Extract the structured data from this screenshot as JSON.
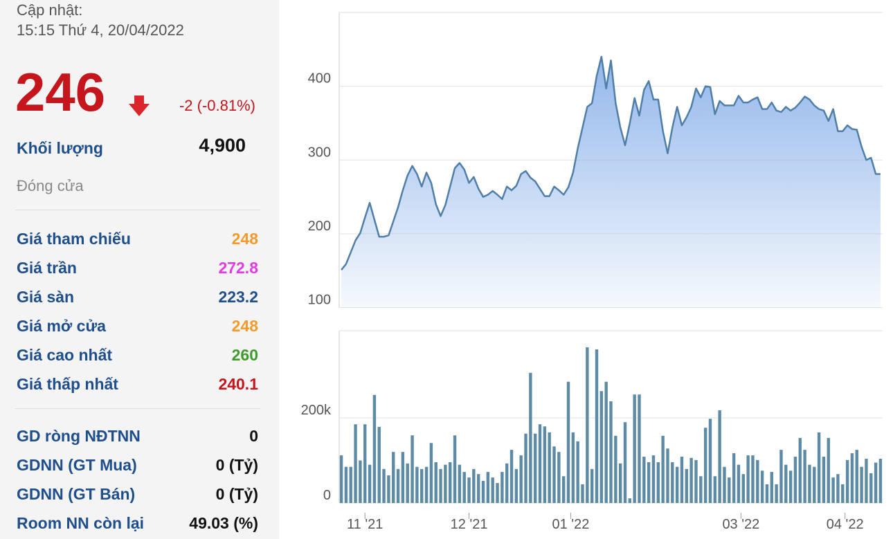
{
  "header": {
    "update_label": "Cập nhật:",
    "update_time": "15:15 Thứ 4, 20/04/2022"
  },
  "quote": {
    "price": "246",
    "change": "-2 (-0.81%)",
    "color": "#c4161c",
    "volume_label": "Khối lượng",
    "volume": "4,900",
    "status": "Đóng cửa"
  },
  "stats": [
    {
      "label": "Giá tham chiếu",
      "value": "248",
      "color": "#f39a2b"
    },
    {
      "label": "Giá trần",
      "value": "272.8",
      "color": "#e23be3"
    },
    {
      "label": "Giá sàn",
      "value": "223.2",
      "color": "#1f4e8c"
    },
    {
      "label": "Giá mở cửa",
      "value": "248",
      "color": "#f39a2b"
    },
    {
      "label": "Giá cao nhất",
      "value": "260",
      "color": "#3f9b2c"
    },
    {
      "label": "Giá thấp nhất",
      "value": "240.1",
      "color": "#c4161c"
    }
  ],
  "foreign": [
    {
      "label": "GD ròng NĐTNN",
      "value": "0"
    },
    {
      "label": "GDNN (GT Mua)",
      "value": "0 (Tỷ)"
    },
    {
      "label": "GDNN (GT Bán)",
      "value": "0 (Tỷ)"
    },
    {
      "label": "Room NN còn lại",
      "value": "49.03 (%)"
    }
  ],
  "chart_data": [
    {
      "type": "area",
      "color": "#4f7ea8",
      "fill": "#8db3ea",
      "grid": true,
      "xlim": [
        -0.45,
        114.45
      ],
      "ylim": [
        100,
        500
      ],
      "yticks": [
        100,
        200,
        300,
        400
      ],
      "values": [
        151,
        159,
        175,
        191,
        201,
        222,
        242,
        219,
        196,
        196,
        198,
        217,
        236,
        259,
        279,
        292,
        281,
        264,
        283,
        269,
        240,
        224,
        239,
        264,
        289,
        296,
        287,
        269,
        277,
        261,
        250,
        253,
        258,
        253,
        247,
        264,
        259,
        265,
        281,
        285,
        276,
        271,
        261,
        251,
        251,
        264,
        259,
        253,
        263,
        283,
        316,
        344,
        372,
        377,
        414,
        440,
        397,
        435,
        377,
        344,
        320,
        350,
        384,
        360,
        395,
        407,
        382,
        382,
        339,
        309,
        344,
        372,
        347,
        358,
        372,
        397,
        385,
        400,
        399,
        362,
        380,
        374,
        374,
        374,
        387,
        378,
        378,
        382,
        385,
        369,
        369,
        378,
        367,
        365,
        372,
        367,
        371,
        378,
        386,
        382,
        374,
        369,
        367,
        353,
        369,
        339,
        339,
        347,
        342,
        341,
        318,
        300,
        303,
        281,
        281
      ]
    },
    {
      "type": "bar",
      "color": "#5d8ba6",
      "grid": true,
      "xlim": [
        -0.45,
        114.45
      ],
      "ylim": [
        0,
        400000
      ],
      "yticks": [
        0,
        {
          "value": 200000,
          "label": "200k"
        }
      ],
      "xticks": [
        {
          "value": 5,
          "label": "11 '21"
        },
        {
          "value": 27,
          "label": "12 '21"
        },
        {
          "value": 48.5,
          "label": "01 '22"
        },
        {
          "value": 84.5,
          "label": "03 '22"
        },
        {
          "value": 106.5,
          "label": "04 '22"
        }
      ],
      "values": [
        112000,
        85000,
        85000,
        185000,
        100000,
        185000,
        90000,
        254000,
        179000,
        80000,
        65000,
        120000,
        80000,
        120000,
        93000,
        159000,
        85000,
        80000,
        85000,
        141000,
        96000,
        80000,
        90000,
        96000,
        159000,
        90000,
        73000,
        60000,
        80000,
        68000,
        52000,
        73000,
        60000,
        47000,
        73000,
        93000,
        125000,
        80000,
        112000,
        163000,
        306000,
        163000,
        185000,
        180000,
        166000,
        133000,
        120000,
        63000,
        285000,
        166000,
        145000,
        44000,
        366000,
        80000,
        361000,
        263000,
        285000,
        239000,
        158000,
        93000,
        190000,
        11000,
        255000,
        255000,
        109000,
        96000,
        112000,
        96000,
        158000,
        128000,
        96000,
        85000,
        109000,
        80000,
        106000,
        101000,
        63000,
        177000,
        198000,
        63000,
        218000,
        85000,
        60000,
        117000,
        90000,
        68000,
        112000,
        112000,
        101000,
        76000,
        44000,
        73000,
        44000,
        125000,
        90000,
        76000,
        109000,
        153000,
        125000,
        90000,
        85000,
        166000,
        109000,
        153000,
        60000,
        68000,
        44000,
        101000,
        117000,
        125000,
        85000,
        104000,
        70000,
        95000,
        104000
      ]
    }
  ]
}
